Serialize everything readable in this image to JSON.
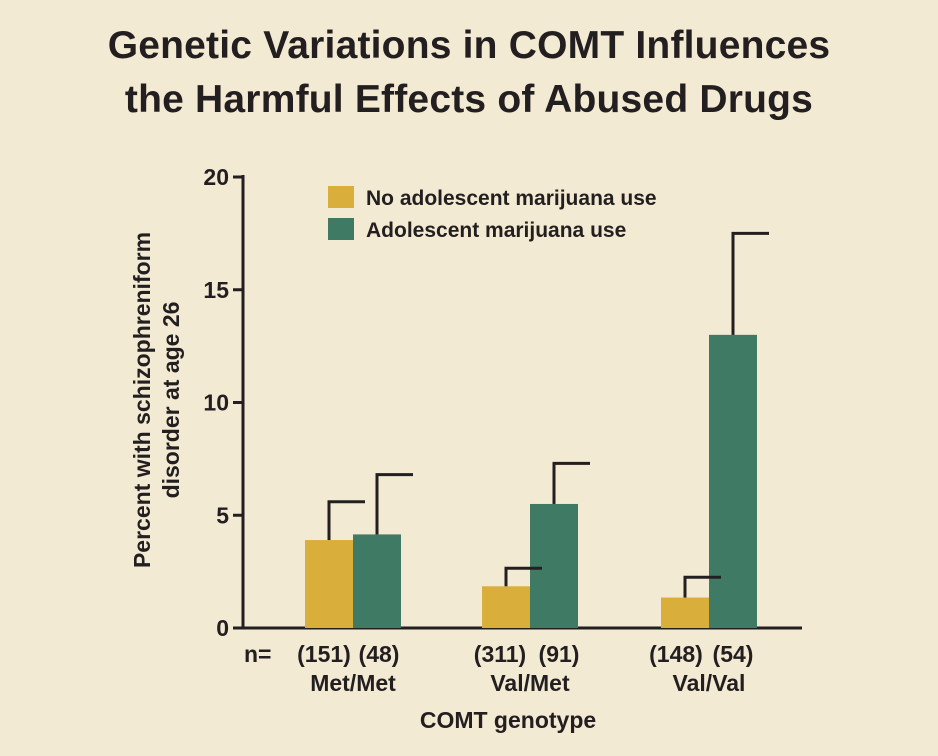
{
  "title": {
    "line1": "Genetic Variations in COMT Influences",
    "line2": "the Harmful Effects of Abused Drugs"
  },
  "chart_data": {
    "type": "bar",
    "title": "Genetic Variations in COMT Influences the Harmful Effects of Abused Drugs",
    "xlabel": "COMT genotype",
    "ylabel": "Percent with schizophreniform disorder at age 26",
    "ylabel_lines": [
      "Percent with schizophreniform",
      "disorder at age 26"
    ],
    "ylim": [
      0,
      20
    ],
    "yticks": [
      "0",
      "5",
      "10",
      "15",
      "20"
    ],
    "categories": [
      "Met/Met",
      "Val/Met",
      "Val/Val"
    ],
    "n_prefix": "n=",
    "series": [
      {
        "name": "No adolescent marijuana use",
        "color": "#d9ae3a",
        "values": [
          3.9,
          1.85,
          1.35
        ],
        "error_upper": [
          5.6,
          2.65,
          2.25
        ],
        "n_labels": [
          "(151)",
          "(311)",
          "(148)"
        ]
      },
      {
        "name": "Adolescent marijuana use",
        "color": "#3f7b64",
        "values": [
          4.15,
          5.5,
          13.0
        ],
        "error_upper": [
          6.8,
          7.3,
          17.5
        ],
        "n_labels": [
          "(48)",
          "(91)",
          "(54)"
        ]
      }
    ],
    "legend_position": "top",
    "grid": false
  }
}
